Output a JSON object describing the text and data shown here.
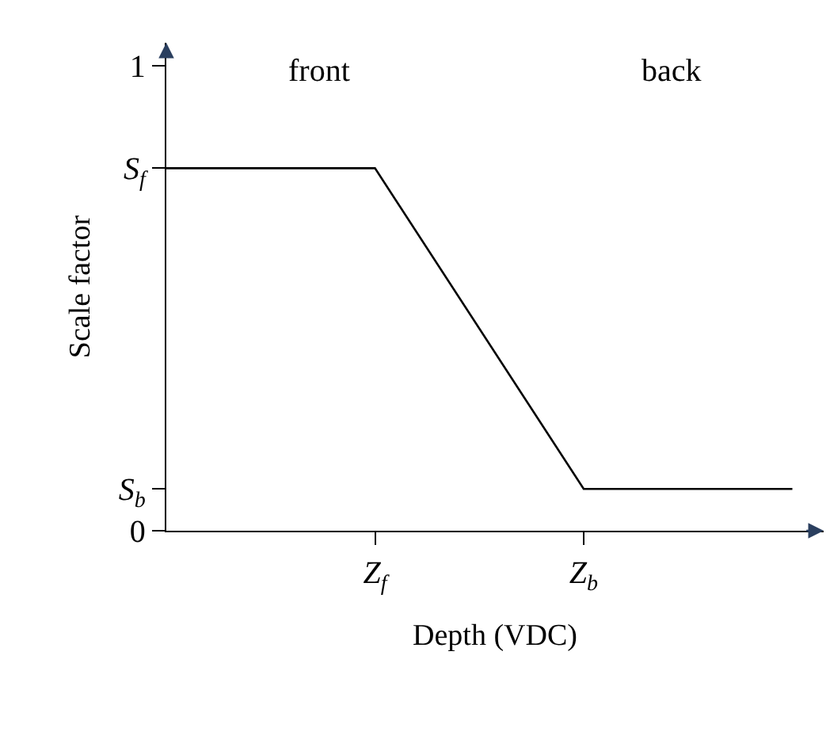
{
  "chart_data": {
    "type": "line",
    "xlabel": "Depth (VDC)",
    "ylabel": "Scale factor",
    "categories": [
      null,
      "Z$_{f}$",
      "Z$_{b}$",
      null
    ],
    "series": [
      {
        "color": "#000000",
        "values": [
          0.78,
          0.78,
          0.09,
          0.09
        ]
      }
    ],
    "ylim": [
      0,
      1.05
    ],
    "yticks": [
      0,
      {
        "value": 0.09,
        "label": "S$_{b}$"
      },
      {
        "value": 0.78,
        "label": "S$_{f}$"
      },
      1
    ],
    "annotations": [
      "front",
      "back"
    ],
    "marker": "none",
    "line_style": "solid"
  }
}
